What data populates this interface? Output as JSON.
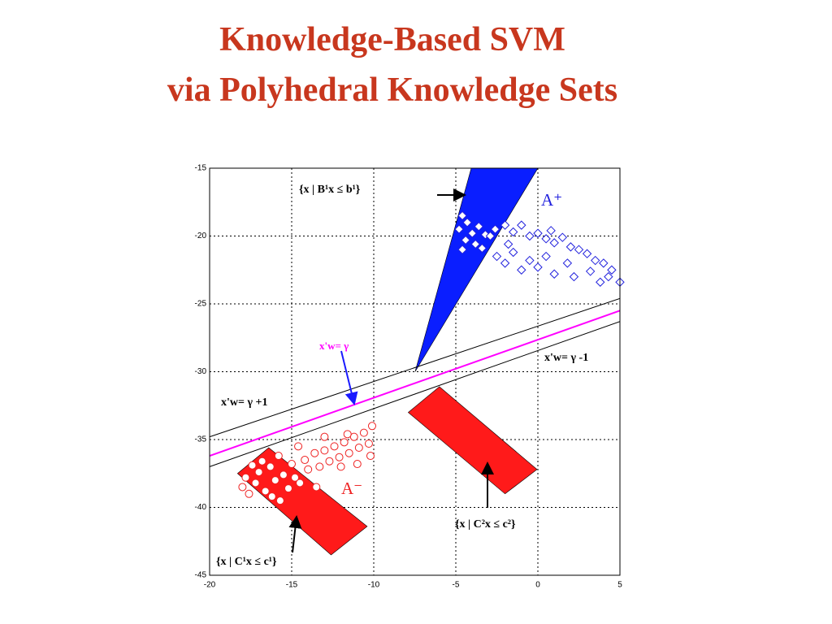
{
  "chart_data": {
    "type": "scatter",
    "title": [
      "Knowledge-Based SVM",
      "via Polyhedral Knowledge Sets"
    ],
    "xlim": [
      -20,
      5
    ],
    "ylim": [
      -45,
      -15
    ],
    "xticks": [
      -20,
      -15,
      -10,
      -5,
      0,
      5
    ],
    "yticks": [
      -15,
      -20,
      -25,
      -30,
      -35,
      -40,
      -45
    ],
    "grid": true,
    "regions": [
      {
        "color": "#0a1eff",
        "x": [
          -7.48,
          -4.06,
          0.0
        ],
        "y": [
          -30.0,
          -15,
          -15
        ]
      },
      {
        "color": "#ff1a1a",
        "x": [
          -18.3,
          -16.4,
          -10.4,
          -12.6
        ],
        "y": [
          -37.5,
          -35.6,
          -41.4,
          -43.5
        ]
      },
      {
        "color": "#ff1a1a",
        "x": [
          -7.9,
          -6.0,
          -0.05,
          -2.0
        ],
        "y": [
          -33.0,
          -31.1,
          -37.2,
          -39.0
        ]
      }
    ],
    "lines": [
      {
        "color": "#000000",
        "x": [
          -20,
          5
        ],
        "y": [
          -34.8,
          -24.6
        ]
      },
      {
        "color": "#ff00ff",
        "x": [
          -20,
          5
        ],
        "y": [
          -36.2,
          -25.5
        ]
      },
      {
        "color": "#000000",
        "x": [
          -20,
          5
        ],
        "y": [
          -37.0,
          -26.3
        ]
      }
    ],
    "series": [
      {
        "color": "#2222dd",
        "marker": "diamond",
        "x": [
          -4.6,
          -4.3,
          -4.8,
          -4.0,
          -3.6,
          -3.2,
          -4.4,
          -3.8,
          -2.9,
          -4.6,
          -3.4,
          -2.6,
          -2.0,
          -1.5,
          -1.0,
          -0.5,
          0.0,
          0.5,
          1.0,
          1.5,
          2.0,
          2.5,
          3.0,
          3.5,
          4.0,
          4.5,
          5.0,
          -2.5,
          -2.0,
          -1.5,
          -1.0,
          -0.5,
          0.5,
          1.0,
          1.8,
          2.2,
          3.2,
          3.8,
          4.3,
          0.0,
          -1.8,
          0.8
        ],
        "y": [
          -18.5,
          -19.0,
          -19.5,
          -19.8,
          -19.3,
          -19.9,
          -20.3,
          -20.6,
          -20.0,
          -21.0,
          -20.9,
          -19.5,
          -19.2,
          -19.7,
          -19.2,
          -20.0,
          -19.8,
          -20.2,
          -20.5,
          -20.1,
          -20.8,
          -21.0,
          -21.3,
          -21.8,
          -22.0,
          -22.5,
          -23.4,
          -21.5,
          -22.0,
          -21.2,
          -22.5,
          -21.8,
          -21.5,
          -22.8,
          -22.0,
          -23.0,
          -22.6,
          -23.4,
          -23.0,
          -22.3,
          -20.6,
          -19.6
        ]
      },
      {
        "color": "#ee2222",
        "marker": "circle",
        "x": [
          -18.0,
          -17.6,
          -17.2,
          -17.0,
          -16.6,
          -16.3,
          -16.0,
          -15.7,
          -15.5,
          -15.2,
          -15.0,
          -14.8,
          -14.5,
          -14.2,
          -14.0,
          -13.6,
          -13.3,
          -13.0,
          -12.7,
          -12.4,
          -12.1,
          -11.8,
          -11.5,
          -11.2,
          -10.9,
          -10.6,
          -10.3,
          -10.1,
          -10.2,
          -11.0,
          -12.0,
          -13.5,
          -16.8,
          -17.8,
          -15.8,
          -14.6,
          -13.0,
          -11.6,
          -16.2,
          -17.4
        ],
        "y": [
          -38.5,
          -39.0,
          -38.2,
          -37.4,
          -38.8,
          -37.0,
          -38.0,
          -39.5,
          -37.6,
          -38.6,
          -36.8,
          -37.8,
          -38.2,
          -36.5,
          -37.2,
          -36.0,
          -37.0,
          -35.8,
          -36.6,
          -35.5,
          -36.3,
          -35.2,
          -36.0,
          -34.8,
          -35.6,
          -34.5,
          -35.3,
          -34.0,
          -36.2,
          -36.8,
          -37.0,
          -38.5,
          -36.6,
          -37.8,
          -36.2,
          -35.5,
          -34.8,
          -34.6,
          -39.2,
          -36.9
        ]
      }
    ],
    "annotations": [
      "{x | B¹x ≤ b¹}",
      "A⁺",
      "x'w= γ",
      "x'w= γ -1",
      "x'w= γ +1",
      "A⁻",
      "{x | C²x  ≤ c²}",
      "{x | C¹x  ≤ c¹}"
    ]
  }
}
